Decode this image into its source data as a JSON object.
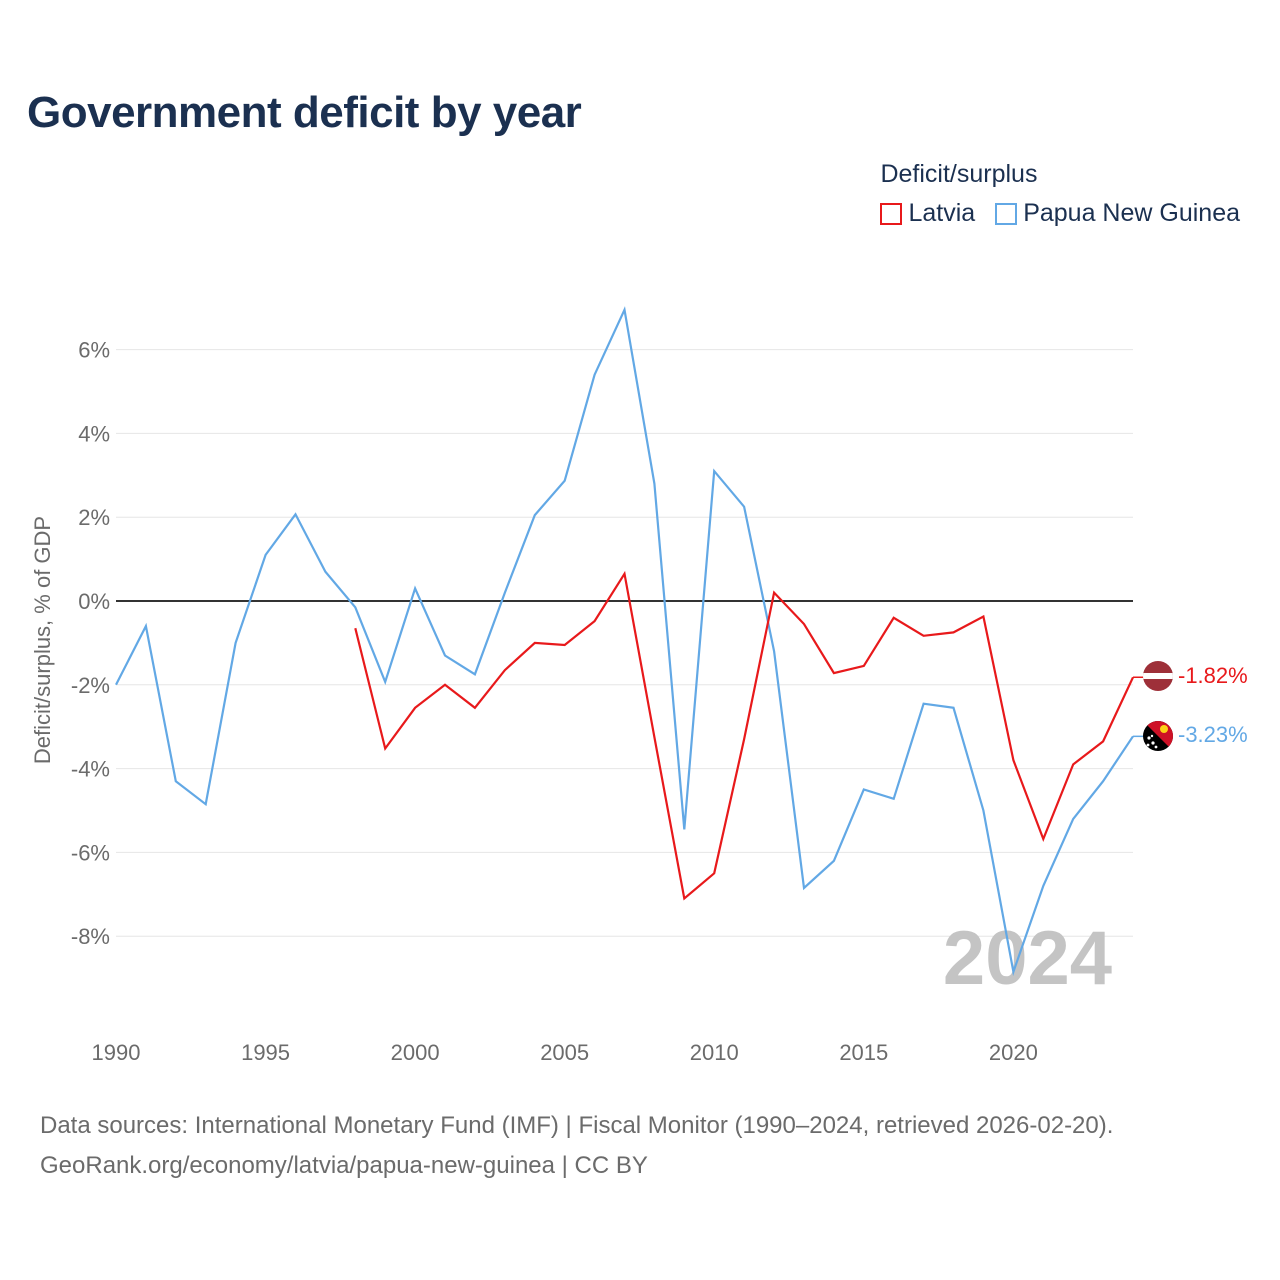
{
  "title": "Government deficit by year",
  "legend": {
    "title": "Deficit/surplus",
    "items": [
      {
        "label": "Latvia",
        "color": "#e8191b"
      },
      {
        "label": "Papua New Guinea",
        "color": "#62a8e5"
      }
    ]
  },
  "year_label": "2024",
  "end_labels": {
    "latvia": "-1.82%",
    "png": "-3.23%"
  },
  "footer": {
    "line1": "Data sources: International Monetary Fund (IMF) | Fiscal Monitor (1990–2024, retrieved 2026-02-20).",
    "line2": "GeoRank.org/economy/latvia/papua-new-guinea | CC BY"
  },
  "chart_data": {
    "type": "line",
    "title": "Government deficit by year",
    "xlabel": "",
    "ylabel": "Deficit/surplus, % of GDP",
    "xlim": [
      1990,
      2024
    ],
    "ylim": [
      -10,
      7
    ],
    "x_ticks": [
      1990,
      1995,
      2000,
      2005,
      2010,
      2015,
      2020
    ],
    "y_ticks": [
      {
        "value": 6,
        "label": "6%"
      },
      {
        "value": 4,
        "label": "4%"
      },
      {
        "value": 2,
        "label": "2%"
      },
      {
        "value": 0,
        "label": "0%"
      },
      {
        "value": -2,
        "label": "-2%"
      },
      {
        "value": -4,
        "label": "-4%"
      },
      {
        "value": -6,
        "label": "-6%"
      },
      {
        "value": -8,
        "label": "-8%"
      }
    ],
    "grid": true,
    "series": [
      {
        "name": "Latvia",
        "color": "#e8191b",
        "x": [
          1998,
          1999,
          2000,
          2001,
          2002,
          2003,
          2004,
          2005,
          2006,
          2007,
          2008,
          2009,
          2010,
          2011,
          2012,
          2013,
          2014,
          2015,
          2016,
          2017,
          2018,
          2019,
          2020,
          2021,
          2022,
          2023,
          2024
        ],
        "values": [
          -0.65,
          -3.52,
          -2.55,
          -2.0,
          -2.55,
          -1.65,
          -1.0,
          -1.05,
          -0.48,
          0.65,
          -3.25,
          -7.1,
          -6.5,
          -3.3,
          0.2,
          -0.55,
          -1.72,
          -1.55,
          -0.4,
          -0.83,
          -0.75,
          -0.37,
          -3.8,
          -5.68,
          -3.9,
          -3.35,
          -1.82
        ]
      },
      {
        "name": "Papua New Guinea",
        "color": "#62a8e5",
        "x": [
          1990,
          1991,
          1992,
          1993,
          1994,
          1995,
          1996,
          1997,
          1998,
          1999,
          2000,
          2001,
          2002,
          2003,
          2004,
          2005,
          2006,
          2007,
          2008,
          2009,
          2010,
          2011,
          2012,
          2013,
          2014,
          2015,
          2016,
          2017,
          2018,
          2019,
          2020,
          2021,
          2022,
          2023,
          2024
        ],
        "values": [
          -2.0,
          -0.6,
          -4.3,
          -4.85,
          -1.0,
          1.1,
          2.07,
          0.7,
          -0.15,
          -1.93,
          0.3,
          -1.3,
          -1.75,
          0.2,
          2.05,
          2.87,
          5.4,
          6.95,
          2.8,
          -5.45,
          3.1,
          2.25,
          -1.2,
          -6.85,
          -6.2,
          -4.5,
          -4.72,
          -2.45,
          -2.55,
          -5.0,
          -8.85,
          -6.8,
          -5.2,
          -4.3,
          -3.23
        ]
      }
    ]
  }
}
